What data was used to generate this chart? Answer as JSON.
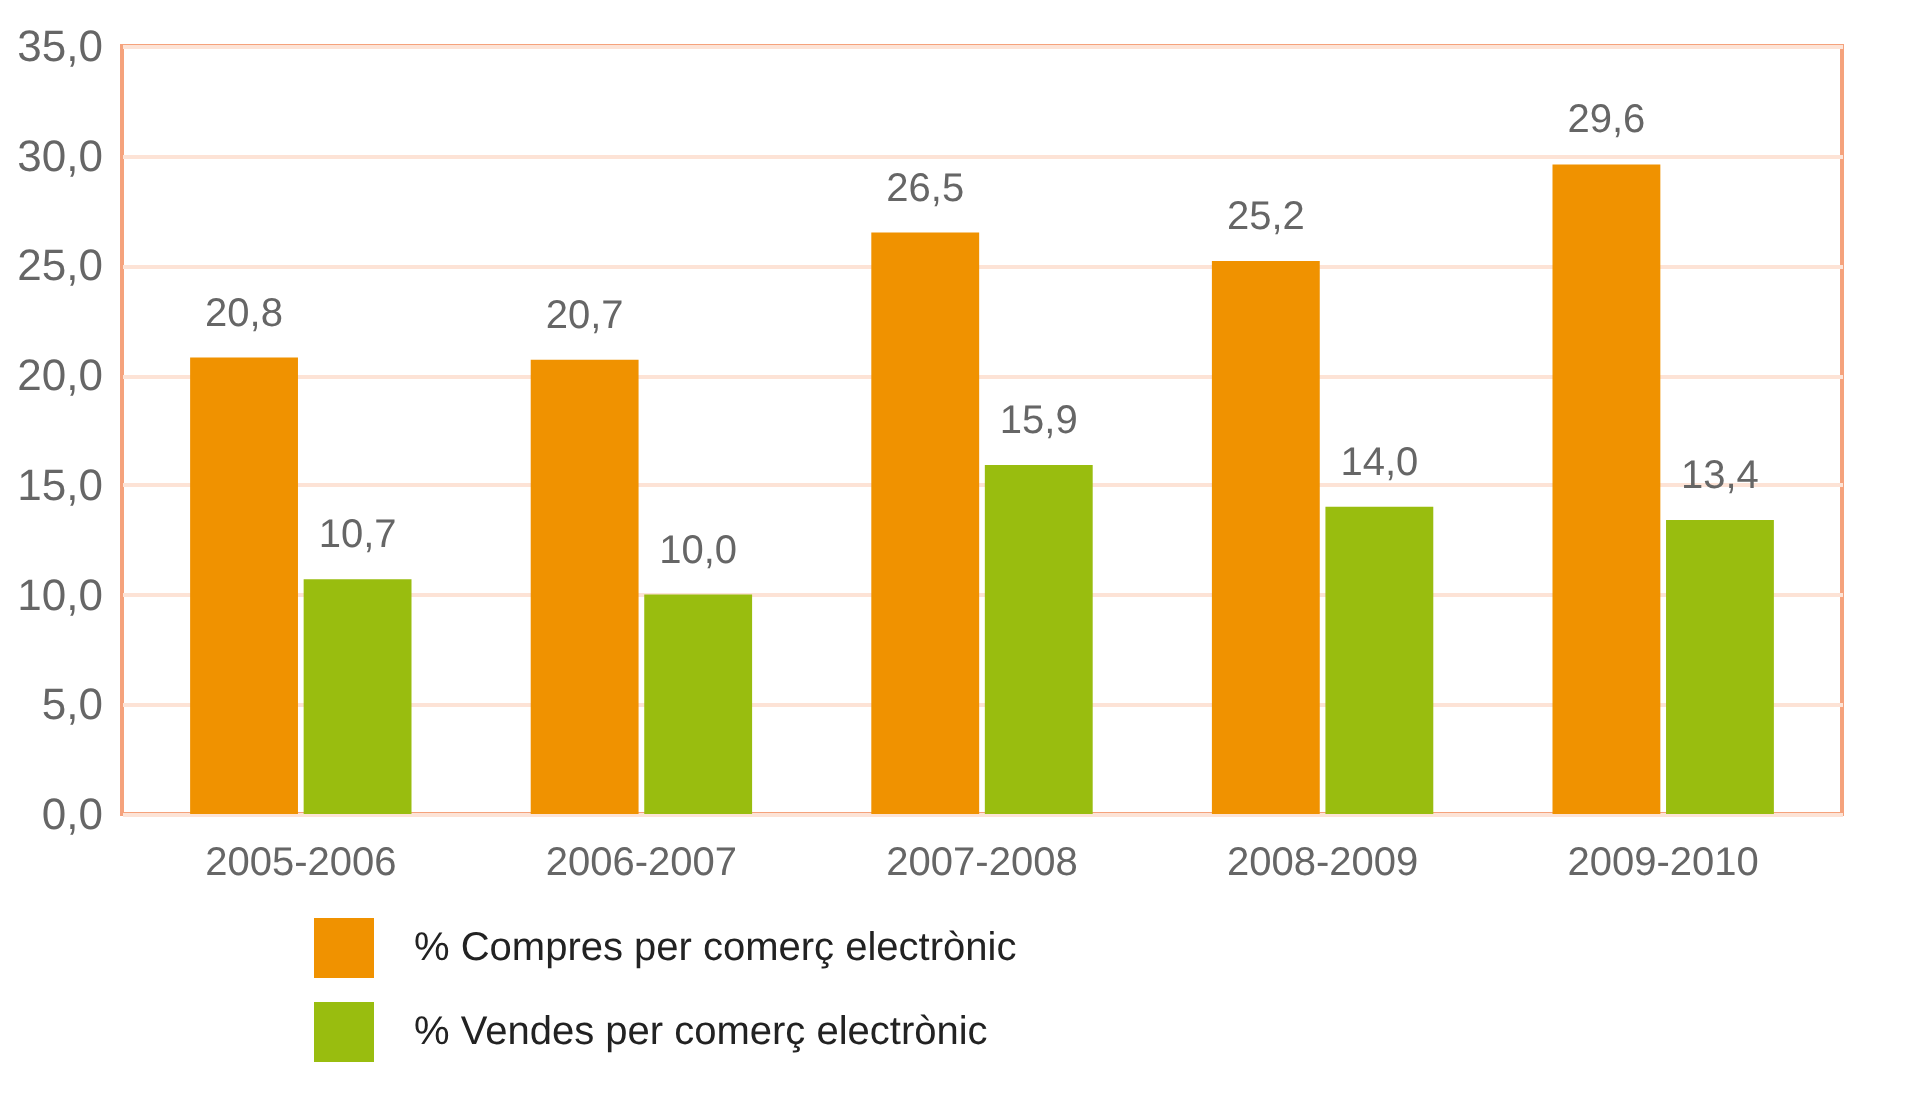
{
  "chart_data": {
    "type": "bar",
    "categories": [
      "2005-2006",
      "2006-2007",
      "2007-2008",
      "2008-2009",
      "2009-2010"
    ],
    "series": [
      {
        "name": "% Compres per comerç electrònic",
        "color": "#f09200",
        "values": [
          20.8,
          20.7,
          26.5,
          25.2,
          29.6
        ],
        "value_labels": [
          "20,8",
          "20,7",
          "26,5",
          "25,2",
          "29,6"
        ]
      },
      {
        "name": "% Vendes per comerç electrònic",
        "color": "#99bd0f",
        "values": [
          10.7,
          10.0,
          15.9,
          14.0,
          13.4
        ],
        "value_labels": [
          "10,7",
          "10,0",
          "15,9",
          "14,0",
          "13,4"
        ]
      }
    ],
    "ylim": [
      0,
      35
    ],
    "yticks": [
      {
        "value": 0,
        "label": "0,0"
      },
      {
        "value": 5,
        "label": "5,0"
      },
      {
        "value": 10,
        "label": "10,0"
      },
      {
        "value": 15,
        "label": "15,0"
      },
      {
        "value": 20,
        "label": "20,0"
      },
      {
        "value": 25,
        "label": "25,0"
      },
      {
        "value": 30,
        "label": "30,0"
      },
      {
        "value": 35,
        "label": "35,0"
      }
    ],
    "grid": "y",
    "legend": "bottom"
  }
}
